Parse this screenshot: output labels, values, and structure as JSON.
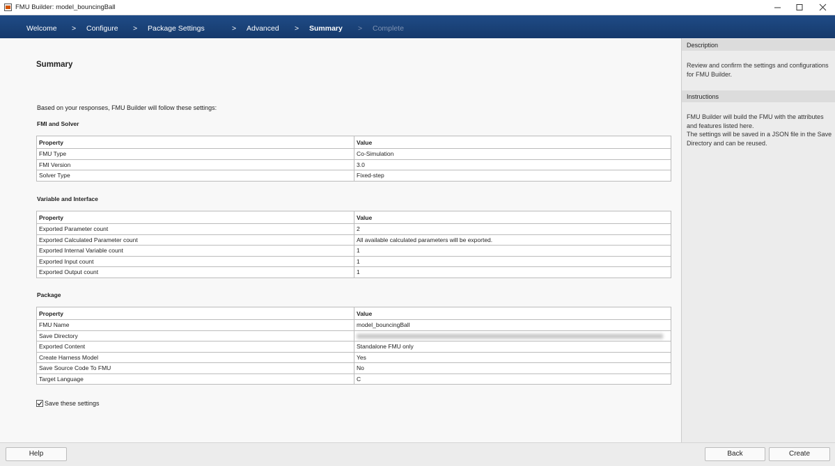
{
  "window": {
    "title": "FMU Builder: model_bouncingBall"
  },
  "nav": {
    "steps": [
      "Welcome",
      "Configure",
      "Package Settings",
      "Advanced",
      "Summary",
      "Complete"
    ],
    "separator": ">",
    "current_step": 4
  },
  "page": {
    "title": "Summary",
    "intro": "Based on your responses, FMU Builder will follow these settings:",
    "sections": [
      {
        "title": "FMI and Solver",
        "columns": [
          "Property",
          "Value"
        ],
        "rows": [
          [
            "FMU Type",
            "Co-Simulation"
          ],
          [
            "FMI Version",
            "3.0"
          ],
          [
            "Solver Type",
            "Fixed-step"
          ]
        ]
      },
      {
        "title": "Variable and Interface",
        "columns": [
          "Property",
          "Value"
        ],
        "rows": [
          [
            "Exported Parameter count",
            "2"
          ],
          [
            "Exported Calculated Parameter count",
            "All available calculated parameters will be exported."
          ],
          [
            "Exported Internal Variable count",
            "1"
          ],
          [
            "Exported Input count",
            "1"
          ],
          [
            "Exported Output count",
            "1"
          ]
        ]
      },
      {
        "title": "Package",
        "columns": [
          "Property",
          "Value"
        ],
        "rows": [
          [
            "FMU Name",
            "model_bouncingBall"
          ],
          [
            "Save Directory"
          ],
          [
            "Exported Content",
            "Standalone FMU only"
          ],
          [
            "Create Harness Model",
            "Yes"
          ],
          [
            "Save Source Code To FMU",
            "No"
          ],
          [
            "Target Language",
            "C"
          ]
        ]
      }
    ],
    "save_settings": {
      "label": "Save these settings",
      "checked": true
    }
  },
  "side_panel": {
    "description": {
      "title": "Description",
      "paragraphs": [
        "Review and confirm the settings and configurations for FMU Builder."
      ]
    },
    "instructions": {
      "title": "Instructions",
      "paragraphs": [
        "FMU Builder will build the FMU with the attributes and features listed here.",
        "The settings will be saved in a JSON file in the Save Directory and can be reused."
      ]
    }
  },
  "buttons": {
    "help": "Help",
    "back": "Back",
    "create": "Create"
  }
}
